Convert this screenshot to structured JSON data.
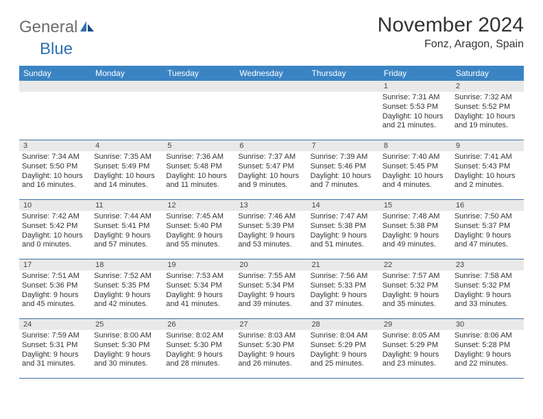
{
  "logo": {
    "general": "General",
    "blue": "Blue"
  },
  "header": {
    "month_title": "November 2024",
    "location": "Fonz, Aragon, Spain"
  },
  "colors": {
    "header_bar": "#3b84c4",
    "week_divider": "#3b6fa0",
    "daynum_bg": "#e9e9e9",
    "logo_gray": "#6b6b6b",
    "logo_blue": "#2f6fb0"
  },
  "days_of_week": [
    "Sunday",
    "Monday",
    "Tuesday",
    "Wednesday",
    "Thursday",
    "Friday",
    "Saturday"
  ],
  "weeks": [
    [
      {
        "n": "",
        "sunrise": "",
        "sunset": "",
        "daylight": ""
      },
      {
        "n": "",
        "sunrise": "",
        "sunset": "",
        "daylight": ""
      },
      {
        "n": "",
        "sunrise": "",
        "sunset": "",
        "daylight": ""
      },
      {
        "n": "",
        "sunrise": "",
        "sunset": "",
        "daylight": ""
      },
      {
        "n": "",
        "sunrise": "",
        "sunset": "",
        "daylight": ""
      },
      {
        "n": "1",
        "sunrise": "Sunrise: 7:31 AM",
        "sunset": "Sunset: 5:53 PM",
        "daylight": "Daylight: 10 hours and 21 minutes."
      },
      {
        "n": "2",
        "sunrise": "Sunrise: 7:32 AM",
        "sunset": "Sunset: 5:52 PM",
        "daylight": "Daylight: 10 hours and 19 minutes."
      }
    ],
    [
      {
        "n": "3",
        "sunrise": "Sunrise: 7:34 AM",
        "sunset": "Sunset: 5:50 PM",
        "daylight": "Daylight: 10 hours and 16 minutes."
      },
      {
        "n": "4",
        "sunrise": "Sunrise: 7:35 AM",
        "sunset": "Sunset: 5:49 PM",
        "daylight": "Daylight: 10 hours and 14 minutes."
      },
      {
        "n": "5",
        "sunrise": "Sunrise: 7:36 AM",
        "sunset": "Sunset: 5:48 PM",
        "daylight": "Daylight: 10 hours and 11 minutes."
      },
      {
        "n": "6",
        "sunrise": "Sunrise: 7:37 AM",
        "sunset": "Sunset: 5:47 PM",
        "daylight": "Daylight: 10 hours and 9 minutes."
      },
      {
        "n": "7",
        "sunrise": "Sunrise: 7:39 AM",
        "sunset": "Sunset: 5:46 PM",
        "daylight": "Daylight: 10 hours and 7 minutes."
      },
      {
        "n": "8",
        "sunrise": "Sunrise: 7:40 AM",
        "sunset": "Sunset: 5:45 PM",
        "daylight": "Daylight: 10 hours and 4 minutes."
      },
      {
        "n": "9",
        "sunrise": "Sunrise: 7:41 AM",
        "sunset": "Sunset: 5:43 PM",
        "daylight": "Daylight: 10 hours and 2 minutes."
      }
    ],
    [
      {
        "n": "10",
        "sunrise": "Sunrise: 7:42 AM",
        "sunset": "Sunset: 5:42 PM",
        "daylight": "Daylight: 10 hours and 0 minutes."
      },
      {
        "n": "11",
        "sunrise": "Sunrise: 7:44 AM",
        "sunset": "Sunset: 5:41 PM",
        "daylight": "Daylight: 9 hours and 57 minutes."
      },
      {
        "n": "12",
        "sunrise": "Sunrise: 7:45 AM",
        "sunset": "Sunset: 5:40 PM",
        "daylight": "Daylight: 9 hours and 55 minutes."
      },
      {
        "n": "13",
        "sunrise": "Sunrise: 7:46 AM",
        "sunset": "Sunset: 5:39 PM",
        "daylight": "Daylight: 9 hours and 53 minutes."
      },
      {
        "n": "14",
        "sunrise": "Sunrise: 7:47 AM",
        "sunset": "Sunset: 5:38 PM",
        "daylight": "Daylight: 9 hours and 51 minutes."
      },
      {
        "n": "15",
        "sunrise": "Sunrise: 7:48 AM",
        "sunset": "Sunset: 5:38 PM",
        "daylight": "Daylight: 9 hours and 49 minutes."
      },
      {
        "n": "16",
        "sunrise": "Sunrise: 7:50 AM",
        "sunset": "Sunset: 5:37 PM",
        "daylight": "Daylight: 9 hours and 47 minutes."
      }
    ],
    [
      {
        "n": "17",
        "sunrise": "Sunrise: 7:51 AM",
        "sunset": "Sunset: 5:36 PM",
        "daylight": "Daylight: 9 hours and 45 minutes."
      },
      {
        "n": "18",
        "sunrise": "Sunrise: 7:52 AM",
        "sunset": "Sunset: 5:35 PM",
        "daylight": "Daylight: 9 hours and 42 minutes."
      },
      {
        "n": "19",
        "sunrise": "Sunrise: 7:53 AM",
        "sunset": "Sunset: 5:34 PM",
        "daylight": "Daylight: 9 hours and 41 minutes."
      },
      {
        "n": "20",
        "sunrise": "Sunrise: 7:55 AM",
        "sunset": "Sunset: 5:34 PM",
        "daylight": "Daylight: 9 hours and 39 minutes."
      },
      {
        "n": "21",
        "sunrise": "Sunrise: 7:56 AM",
        "sunset": "Sunset: 5:33 PM",
        "daylight": "Daylight: 9 hours and 37 minutes."
      },
      {
        "n": "22",
        "sunrise": "Sunrise: 7:57 AM",
        "sunset": "Sunset: 5:32 PM",
        "daylight": "Daylight: 9 hours and 35 minutes."
      },
      {
        "n": "23",
        "sunrise": "Sunrise: 7:58 AM",
        "sunset": "Sunset: 5:32 PM",
        "daylight": "Daylight: 9 hours and 33 minutes."
      }
    ],
    [
      {
        "n": "24",
        "sunrise": "Sunrise: 7:59 AM",
        "sunset": "Sunset: 5:31 PM",
        "daylight": "Daylight: 9 hours and 31 minutes."
      },
      {
        "n": "25",
        "sunrise": "Sunrise: 8:00 AM",
        "sunset": "Sunset: 5:30 PM",
        "daylight": "Daylight: 9 hours and 30 minutes."
      },
      {
        "n": "26",
        "sunrise": "Sunrise: 8:02 AM",
        "sunset": "Sunset: 5:30 PM",
        "daylight": "Daylight: 9 hours and 28 minutes."
      },
      {
        "n": "27",
        "sunrise": "Sunrise: 8:03 AM",
        "sunset": "Sunset: 5:30 PM",
        "daylight": "Daylight: 9 hours and 26 minutes."
      },
      {
        "n": "28",
        "sunrise": "Sunrise: 8:04 AM",
        "sunset": "Sunset: 5:29 PM",
        "daylight": "Daylight: 9 hours and 25 minutes."
      },
      {
        "n": "29",
        "sunrise": "Sunrise: 8:05 AM",
        "sunset": "Sunset: 5:29 PM",
        "daylight": "Daylight: 9 hours and 23 minutes."
      },
      {
        "n": "30",
        "sunrise": "Sunrise: 8:06 AM",
        "sunset": "Sunset: 5:28 PM",
        "daylight": "Daylight: 9 hours and 22 minutes."
      }
    ]
  ]
}
